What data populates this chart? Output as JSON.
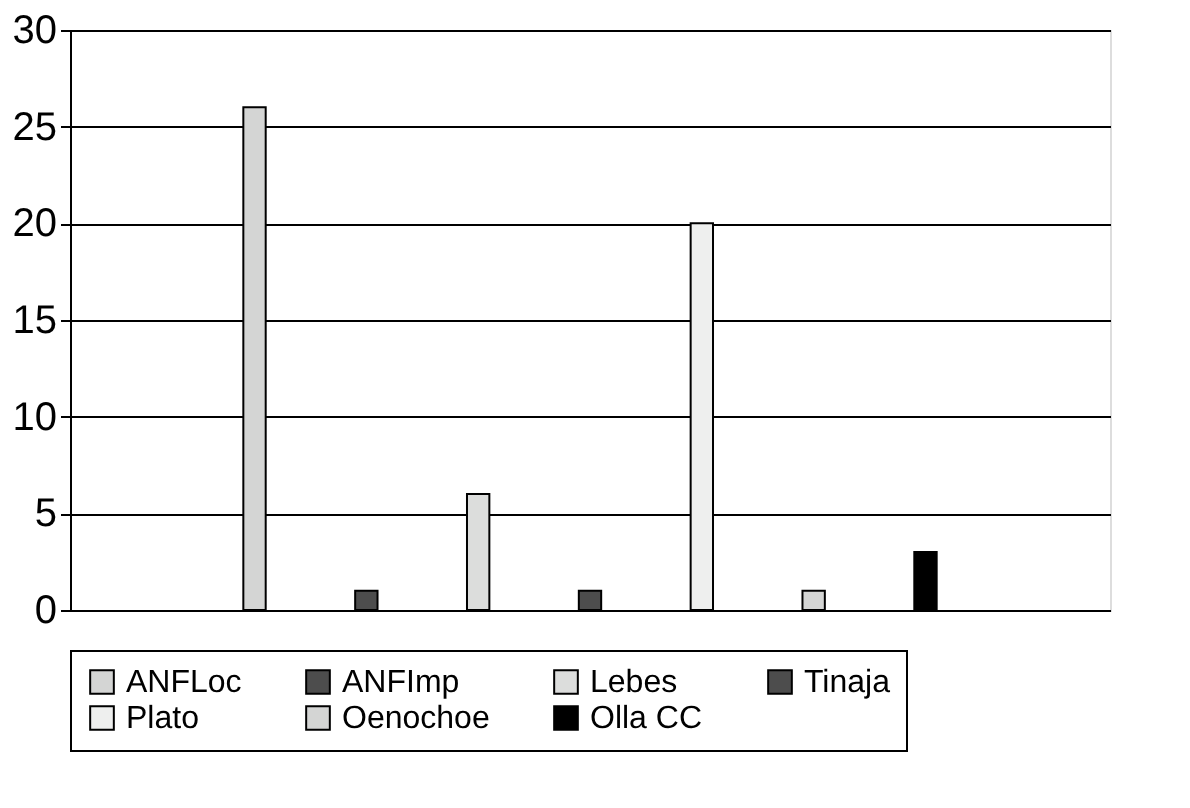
{
  "chart_data": {
    "type": "bar",
    "categories": [
      null
    ],
    "series": [
      {
        "name": "ANFLoc",
        "color": "#d4d5d4",
        "values": [
          26
        ]
      },
      {
        "name": "ANFImp",
        "color": "#4d4d4d",
        "values": [
          1
        ]
      },
      {
        "name": "Lebes",
        "color": "#dcdddc",
        "values": [
          6
        ]
      },
      {
        "name": "Tinaja",
        "color": "#4d4d4d",
        "values": [
          1
        ]
      },
      {
        "name": "Plato",
        "color": "#eeefee",
        "values": [
          20
        ]
      },
      {
        "name": "Oenochoe",
        "color": "#d4d5d4",
        "values": [
          1
        ]
      },
      {
        "name": "Olla CC",
        "color": "#000000",
        "values": [
          3
        ]
      }
    ],
    "ylim": [
      0,
      30
    ],
    "yticks": [
      0,
      5,
      10,
      15,
      20,
      25,
      30
    ],
    "grid": "y",
    "legend": "bottom",
    "tick_labels": "y"
  }
}
